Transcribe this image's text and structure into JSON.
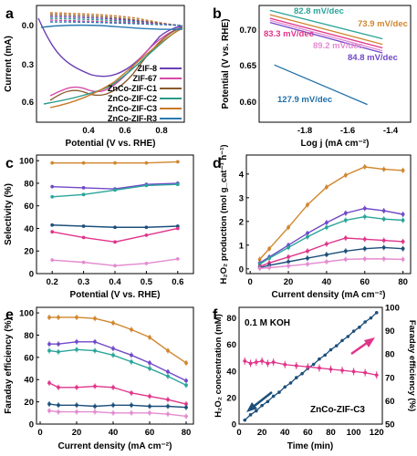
{
  "colors": {
    "ZIF-8": "#6a3fb5",
    "ZIF-67": "#d64aa6",
    "ZnCo-ZIF-C1": "#8a5a2c",
    "ZnCo-ZIF-C2": "#2a9a8a",
    "ZnCo-ZIF-C3": "#c87a2a",
    "ZnCo-ZIF-R3": "#2a7ab0",
    "grey": "#b7a0d8",
    "pink": "#e0358a",
    "purple": "#7048c8",
    "teal": "#2aa59a",
    "blue": "#1f6fa8",
    "orange": "#d0862e",
    "navy": "#1c4f7a",
    "lightpink": "#e48bd0"
  },
  "chart_data": [
    {
      "panel": "a",
      "type": "line",
      "xlabel": "Potential (V vs. RHE)",
      "ylabel": "Current (mA)",
      "xticks": [
        "0.4",
        "0.6",
        "0.8"
      ],
      "yticks": [
        "0.0",
        "0.3",
        "0.6"
      ],
      "xlim": [
        0.1,
        0.9
      ],
      "ylim": [
        0.75,
        -0.15
      ],
      "legend": [
        "ZIF-8",
        "ZIF-67",
        "ZnCo-ZIF-C1",
        "ZnCo-ZIF-C2",
        "ZnCo-ZIF-C3",
        "ZnCo-ZIF-R3"
      ]
    },
    {
      "panel": "b",
      "type": "line",
      "xlabel": "Log j (mA cm⁻²)",
      "ylabel": "Potential (V vs. RHE)",
      "xticks": [
        "-1.8",
        "-1.6",
        "-1.4"
      ],
      "yticks": [
        "0.60",
        "0.65",
        "0.70"
      ],
      "xlim": [
        -2.0,
        -1.3
      ],
      "ylim": [
        0.575,
        0.74
      ],
      "annotations": [
        "82.8 mV/dec",
        "73.9 mV/dec",
        "83.3 mV/dec",
        "89.2 mV/dec",
        "84.8 mV/dec",
        "127.9 mV/dec"
      ],
      "series": [
        {
          "color": "teal",
          "x": [
            -1.95,
            -1.43
          ],
          "y": [
            0.733,
            0.693
          ]
        },
        {
          "color": "orange",
          "x": [
            -1.95,
            -1.43
          ],
          "y": [
            0.727,
            0.685
          ]
        },
        {
          "color": "pink",
          "x": [
            -1.95,
            -1.43
          ],
          "y": [
            0.722,
            0.68
          ]
        },
        {
          "color": "lightpink",
          "x": [
            -1.95,
            -1.43
          ],
          "y": [
            0.719,
            0.676
          ]
        },
        {
          "color": "purple",
          "x": [
            -1.95,
            -1.43
          ],
          "y": [
            0.716,
            0.673
          ]
        },
        {
          "color": "blue",
          "x": [
            -1.93,
            -1.5
          ],
          "y": [
            0.656,
            0.6
          ]
        }
      ]
    },
    {
      "panel": "c",
      "type": "line",
      "xlabel": "Potential (V vs. RHE)",
      "ylabel": "Selectivity (%)",
      "xticks": [
        "0.2",
        "0.3",
        "0.4",
        "0.5",
        "0.6"
      ],
      "yticks": [
        "0",
        "20",
        "40",
        "60",
        "80",
        "100"
      ],
      "xlim": [
        0.15,
        0.65
      ],
      "ylim": [
        0,
        105
      ],
      "x": [
        0.2,
        0.3,
        0.4,
        0.5,
        0.6
      ],
      "series": [
        {
          "color": "orange",
          "values": [
            98,
            98,
            98,
            98,
            99
          ]
        },
        {
          "color": "purple",
          "values": [
            77,
            76,
            75,
            79,
            80
          ]
        },
        {
          "color": "teal",
          "values": [
            68,
            70,
            74,
            78,
            79
          ]
        },
        {
          "color": "navy",
          "values": [
            43,
            42,
            41,
            41,
            42
          ]
        },
        {
          "color": "pink",
          "values": [
            37,
            32,
            28,
            34,
            40
          ]
        },
        {
          "color": "lightpink",
          "values": [
            12,
            10,
            7,
            9,
            13
          ]
        }
      ]
    },
    {
      "panel": "d",
      "type": "line",
      "xlabel": "Current density (mA cm⁻²)",
      "ylabel": "H₂O₂ production (mol g_cat⁻¹ h⁻¹)",
      "xticks": [
        "0",
        "20",
        "40",
        "60",
        "80"
      ],
      "yticks": [
        "0",
        "1",
        "2",
        "3",
        "4"
      ],
      "xlim": [
        -2,
        84
      ],
      "ylim": [
        -0.2,
        4.8
      ],
      "x": [
        5,
        10,
        20,
        30,
        40,
        50,
        60,
        70,
        80
      ],
      "series": [
        {
          "color": "orange",
          "values": [
            0.4,
            0.85,
            1.75,
            2.7,
            3.45,
            3.95,
            4.3,
            4.2,
            4.15
          ]
        },
        {
          "color": "purple",
          "values": [
            0.25,
            0.5,
            1.0,
            1.5,
            1.95,
            2.35,
            2.55,
            2.45,
            2.3
          ]
        },
        {
          "color": "teal",
          "values": [
            0.2,
            0.45,
            0.9,
            1.35,
            1.75,
            2.05,
            2.2,
            2.1,
            2.05
          ]
        },
        {
          "color": "pink",
          "values": [
            0.1,
            0.25,
            0.5,
            0.75,
            1.05,
            1.3,
            1.25,
            1.2,
            1.15
          ]
        },
        {
          "color": "navy",
          "values": [
            0.05,
            0.15,
            0.3,
            0.45,
            0.6,
            0.75,
            0.85,
            0.9,
            0.85
          ]
        },
        {
          "color": "lightpink",
          "values": [
            0.02,
            0.05,
            0.12,
            0.2,
            0.3,
            0.4,
            0.42,
            0.42,
            0.4
          ]
        }
      ]
    },
    {
      "panel": "e",
      "type": "line",
      "xlabel": "Current density (mA cm⁻²)",
      "ylabel": "Faraday efficiency (%)",
      "xticks": [
        "0",
        "20",
        "40",
        "60",
        "80"
      ],
      "yticks": [
        "0",
        "20",
        "40",
        "60",
        "80",
        "100"
      ],
      "xlim": [
        -2,
        84
      ],
      "ylim": [
        0,
        105
      ],
      "x": [
        5,
        10,
        20,
        30,
        40,
        50,
        60,
        70,
        80
      ],
      "series": [
        {
          "color": "orange",
          "values": [
            96,
            96,
            96,
            95,
            91,
            85,
            78,
            66,
            55
          ]
        },
        {
          "color": "purple",
          "values": [
            72,
            72,
            74,
            74,
            68,
            62,
            55,
            47,
            39
          ]
        },
        {
          "color": "teal",
          "values": [
            66,
            65,
            67,
            66,
            62,
            56,
            50,
            43,
            35
          ]
        },
        {
          "color": "pink",
          "values": [
            37,
            33,
            33,
            34,
            33,
            28,
            25,
            22,
            18
          ]
        },
        {
          "color": "navy",
          "values": [
            18,
            17,
            17,
            16,
            17,
            17,
            16,
            16,
            15
          ]
        },
        {
          "color": "lightpink",
          "values": [
            12,
            11,
            11,
            11,
            10,
            10,
            10,
            9,
            7
          ]
        }
      ]
    },
    {
      "panel": "f",
      "type": "line",
      "xlabel": "Time (min)",
      "ylabel": "H₂O₂ concentration (mM)",
      "ylabel2": "Faraday efficiency (%)",
      "annotation": "0.1 M KOH",
      "sample": "ZnCo-ZIF-C3",
      "xticks": [
        "0",
        "20",
        "40",
        "60",
        "80",
        "100",
        "120"
      ],
      "yticks": [
        "0",
        "20",
        "40",
        "60",
        "80"
      ],
      "yticks2": [
        "50",
        "60",
        "70",
        "80",
        "90",
        "100"
      ],
      "xlim": [
        0,
        125
      ],
      "ylim": [
        0,
        88
      ],
      "ylim2": [
        50,
        100
      ],
      "concentration": {
        "x": [
          5,
          10,
          15,
          20,
          25,
          30,
          35,
          40,
          45,
          50,
          55,
          60,
          65,
          70,
          75,
          80,
          85,
          90,
          95,
          100,
          105,
          110,
          115,
          120
        ],
        "values": [
          3,
          7,
          10,
          14,
          17,
          21,
          24,
          28,
          31,
          35,
          38,
          42,
          45,
          49,
          52,
          56,
          59,
          63,
          66,
          70,
          73,
          77,
          80,
          84
        ]
      },
      "efficiency": {
        "x": [
          5,
          10,
          15,
          20,
          25,
          30,
          40,
          50,
          60,
          70,
          80,
          90,
          100,
          110,
          120
        ],
        "values": [
          77,
          76,
          76.5,
          77,
          76,
          76.5,
          75.5,
          75,
          74.5,
          74,
          73.5,
          73,
          72.5,
          72,
          71
        ]
      }
    }
  ]
}
